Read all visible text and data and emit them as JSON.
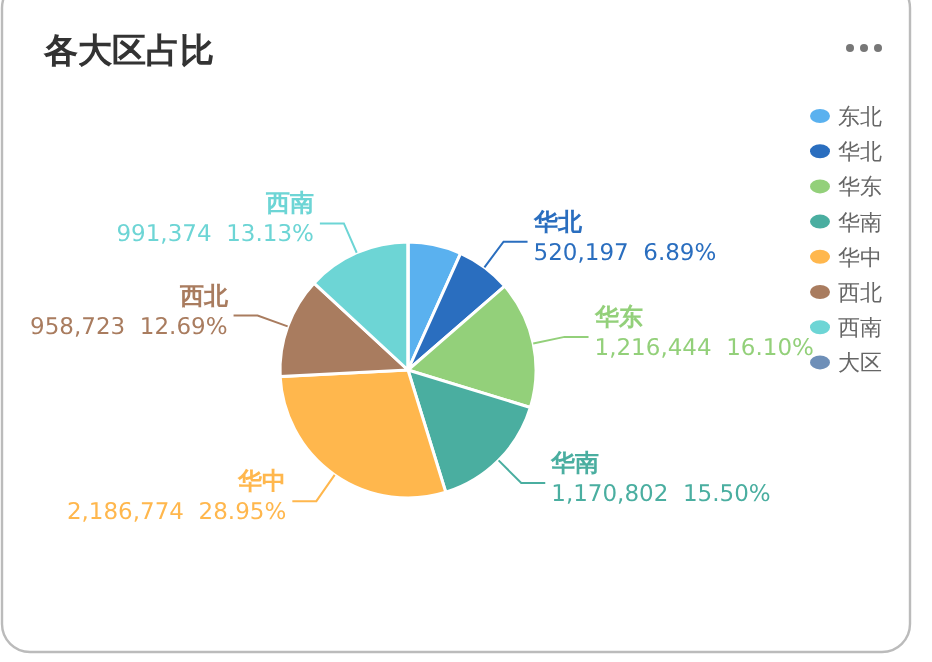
{
  "chart_data": {
    "type": "pie",
    "title": "各大区占比",
    "categories": [
      "东北",
      "华北",
      "华东",
      "华南",
      "华中",
      "西北",
      "西南",
      "大区"
    ],
    "values": [
      509309,
      520197,
      1216444,
      1170802,
      2186774,
      958723,
      991374,
      0
    ],
    "colors": [
      "#5ab1ef",
      "#2a6ebf",
      "#93d07a",
      "#4aaea0",
      "#ffb74d",
      "#a97c5f",
      "#6dd5d5",
      "#6e8fb8"
    ],
    "value_labels": [
      null,
      "520,197  6.89%",
      "1,216,444  16.10%",
      "1,170,802  15.50%",
      "2,186,774  28.95%",
      "958,723  12.69%",
      "991,374  13.13%",
      null
    ],
    "legend": "right"
  }
}
